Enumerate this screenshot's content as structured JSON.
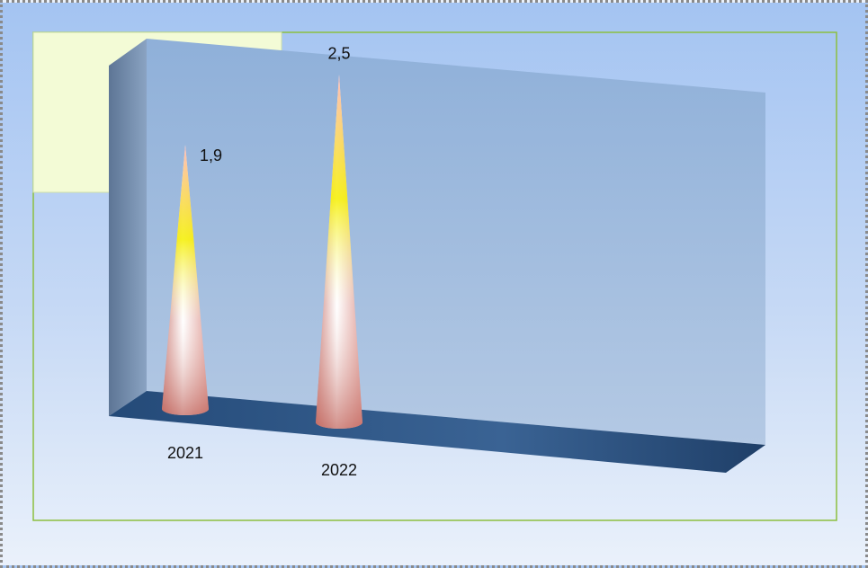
{
  "chart_data": {
    "type": "bar",
    "subtype": "3d-cone",
    "categories": [
      "2021",
      "2022"
    ],
    "values": [
      1.9,
      2.5
    ],
    "value_labels": [
      "1,9",
      "2,5"
    ],
    "title": "",
    "xlabel": "",
    "ylabel": "",
    "grid": false,
    "legend": "none"
  },
  "colors": {
    "background_top": "#a4c4f2",
    "background_bottom": "#eaf1fb",
    "plot_border": "#8cbf3f",
    "legend_box": "#f3fbd6",
    "back_wall_top": "#8fb0d9",
    "back_wall_bottom": "#b4c9e4",
    "side_wall": "#6f88a6",
    "floor": "#2b5280",
    "cone_tip": "#ffd6d6",
    "cone_mid": "#f5f000",
    "cone_body": "#ffffff",
    "cone_base": "#c46b63"
  }
}
